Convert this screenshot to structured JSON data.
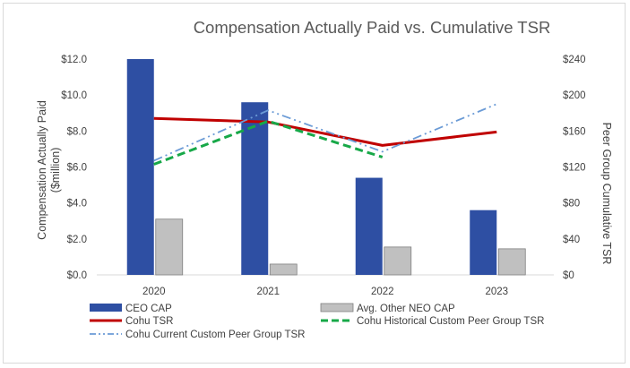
{
  "chart_data": {
    "type": "bar+line",
    "title": "Compensation Actually Paid vs. Cumulative TSR",
    "categories": [
      "2020",
      "2021",
      "2022",
      "2023"
    ],
    "left_axis": {
      "label": "Compensation Actually Paid ($million)",
      "range": [
        0,
        12
      ],
      "ticks": [
        0,
        2,
        4,
        6,
        8,
        10,
        12
      ],
      "tick_labels": [
        "$0.0",
        "$2.0",
        "$4.0",
        "$6.0",
        "$8.0",
        "$10.0",
        "$12.0"
      ]
    },
    "right_axis": {
      "label": "Peer Group Cumulative TSR",
      "range": [
        0,
        240
      ],
      "ticks": [
        0,
        40,
        80,
        120,
        160,
        200,
        240
      ],
      "tick_labels": [
        "$0",
        "$40",
        "$80",
        "$120",
        "$160",
        "$200",
        "$240"
      ]
    },
    "bar_series": [
      {
        "name": "CEO CAP",
        "color": "#2e4fa3",
        "axis": "left",
        "values": [
          12.0,
          9.6,
          5.4,
          3.6
        ]
      },
      {
        "name": "Avg. Other NEO CAP",
        "color": "#c0c0c0",
        "axis": "left",
        "values": [
          3.1,
          0.6,
          1.55,
          1.45
        ]
      }
    ],
    "line_series": [
      {
        "name": "Cohu TSR",
        "color": "#c00000",
        "style": "solid",
        "axis": "right",
        "values": [
          174,
          170,
          144,
          159
        ]
      },
      {
        "name": "Cohu Historical Custom Peer Group TSR",
        "color": "#17a848",
        "style": "dash",
        "axis": "right",
        "values": [
          123,
          171,
          131,
          null
        ]
      },
      {
        "name": "Cohu Current Custom Peer Group TSR",
        "color": "#6b9bd6",
        "style": "dashdotdot",
        "axis": "right",
        "values": [
          127,
          183,
          137,
          190
        ]
      }
    ],
    "legend_position": "bottom"
  }
}
